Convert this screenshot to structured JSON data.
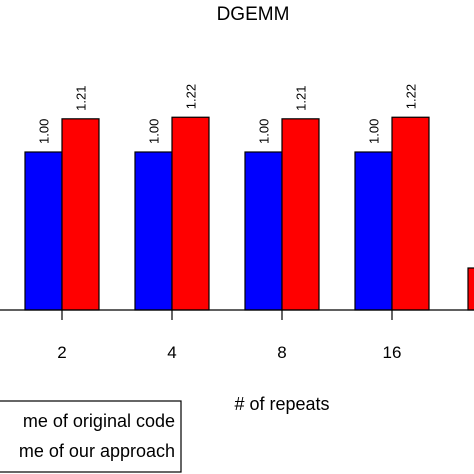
{
  "chart_data": {
    "type": "bar",
    "title": "DGEMM",
    "xlabel": "# of repeats",
    "ylabel": "",
    "categories": [
      "2",
      "4",
      "8",
      "16"
    ],
    "series": [
      {
        "name": "me of original code",
        "color": "#0000ff",
        "values": [
          1.0,
          1.0,
          1.0,
          1.0
        ],
        "labels": [
          "1.00",
          "1.00",
          "1.00",
          "1.00"
        ]
      },
      {
        "name": "me of our approach",
        "color": "#ff0000",
        "values": [
          1.21,
          1.22,
          1.21,
          1.22
        ],
        "labels": [
          "1.21",
          "1.22",
          "1.21",
          "1.22"
        ]
      }
    ],
    "ylim": [
      0,
      1.6
    ],
    "grid": false,
    "legend": "bottom-left"
  }
}
